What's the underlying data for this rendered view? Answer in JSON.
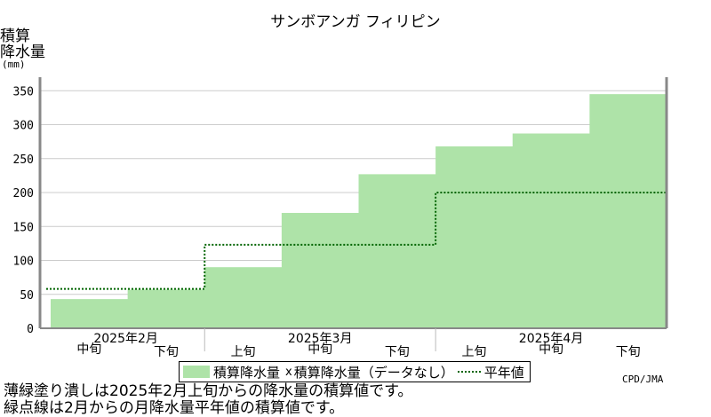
{
  "title": "サンボアンガ フィリピン",
  "ylabel_line1": "積算",
  "ylabel_line2": "降水量",
  "yunit": "(mm)",
  "legend": {
    "bar_label": "積算降水量",
    "missing_mark": "x",
    "missing_label": "積算降水量（データなし）",
    "normal_label": "平年値"
  },
  "credit": "CPD/JMA",
  "notes": [
    "薄緑塗り潰しは2025年2月上旬からの降水量の積算値です。",
    "緑点線は2月からの月降水量平年値の積算値です。"
  ],
  "colors": {
    "bar": "#aee3a8",
    "normal_line": "#006400",
    "grid": "#cccccc",
    "frame": "#888888"
  },
  "chart_data": {
    "type": "bar",
    "ylim": [
      0,
      370
    ],
    "yticks": [
      0,
      50,
      100,
      150,
      200,
      250,
      300,
      350
    ],
    "grid": true,
    "legend_position": "bottom",
    "categories": [
      "2月中旬",
      "2月下旬",
      "3月上旬",
      "3月中旬",
      "3月下旬",
      "4月上旬",
      "4月中旬",
      "4月下旬"
    ],
    "category_labels": [
      "中旬",
      "下旬",
      "上旬",
      "中旬",
      "下旬",
      "上旬",
      "中旬",
      "下旬"
    ],
    "month_labels": [
      "2025年2月",
      "2025年3月",
      "2025年4月"
    ],
    "series": [
      {
        "name": "積算降水量",
        "values": [
          43,
          57,
          90,
          170,
          227,
          268,
          287,
          345
        ]
      },
      {
        "name": "平年値",
        "values": [
          58,
          58,
          123,
          123,
          123,
          200,
          200,
          200
        ]
      }
    ]
  }
}
